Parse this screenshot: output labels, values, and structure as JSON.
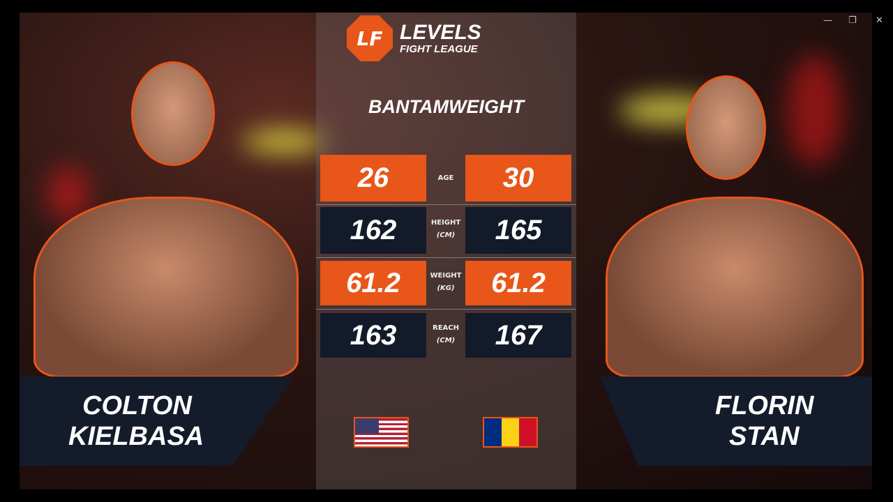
{
  "window_controls": {
    "minimize": "—",
    "restore": "❐",
    "close": "✕"
  },
  "brand": {
    "logo_mark": "LF",
    "title": "LEVELS",
    "subtitle": "FIGHT LEAGUE",
    "accent": "#e8561a",
    "navy": "#131a2a"
  },
  "division": "BANTAMWEIGHT",
  "stats": [
    {
      "label": "AGE",
      "unit": "",
      "left": "26",
      "right": "30"
    },
    {
      "label": "HEIGHT",
      "unit": "(CM)",
      "left": "162",
      "right": "165"
    },
    {
      "label": "WEIGHT",
      "unit": "(KG)",
      "left": "61.2",
      "right": "61.2"
    },
    {
      "label": "REACH",
      "unit": "(CM)",
      "left": "163",
      "right": "167"
    }
  ],
  "fighters": {
    "left": {
      "first": "COLTON",
      "last": "KIELBASA",
      "flag": "USA"
    },
    "right": {
      "first": "FLORIN",
      "last": "STAN",
      "flag": "Romania"
    }
  }
}
